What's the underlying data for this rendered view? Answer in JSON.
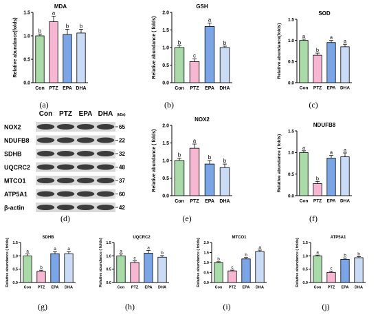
{
  "chart_data": [
    {
      "id": "mda",
      "type": "bar",
      "title": "MDA",
      "ylabel": "Relative abundance(folds)",
      "categories": [
        "Con",
        "PTZ",
        "EPA",
        "DHA"
      ],
      "values": [
        1.0,
        1.3,
        1.03,
        1.06
      ],
      "errors": [
        0.04,
        0.12,
        0.11,
        0.08
      ],
      "sig": [
        "b",
        "a",
        "b",
        "b"
      ],
      "ylim": [
        0,
        1.5
      ],
      "yticks": [
        0.0,
        0.5,
        1.0,
        1.5
      ],
      "caption": "(a)"
    },
    {
      "id": "gsh",
      "type": "bar",
      "title": "GSH",
      "ylabel": "Relative abundance ( folds)",
      "categories": [
        "Con",
        "PTZ",
        "EPA",
        "DHA"
      ],
      "values": [
        1.0,
        0.6,
        1.6,
        1.0
      ],
      "errors": [
        0.05,
        0.08,
        0.1,
        0.04
      ],
      "sig": [
        "b",
        "c",
        "a",
        "b"
      ],
      "ylim": [
        0,
        2.0
      ],
      "yticks": [
        0.0,
        0.5,
        1.0,
        1.5,
        2.0
      ],
      "caption": "(b)"
    },
    {
      "id": "sod",
      "type": "bar",
      "title": "SOD",
      "ylabel": "Relative abundance(folds)",
      "categories": [
        "Con",
        "PTZ",
        "EPA",
        "DHA"
      ],
      "values": [
        1.0,
        0.65,
        0.95,
        0.85
      ],
      "errors": [
        0.03,
        0.05,
        0.05,
        0.06
      ],
      "sig": [
        "a",
        "b",
        "a",
        "a"
      ],
      "ylim": [
        0,
        1.5
      ],
      "yticks": [
        0.0,
        0.5,
        1.0,
        1.5
      ],
      "caption": "(c)"
    },
    {
      "id": "nox2",
      "type": "bar",
      "title": "NOX2",
      "ylabel": "Relative abundance ( folds)",
      "categories": [
        "Con",
        "PTZ",
        "EPA",
        "DHA"
      ],
      "values": [
        1.0,
        1.35,
        0.9,
        0.8
      ],
      "errors": [
        0.07,
        0.12,
        0.1,
        0.1
      ],
      "sig": [
        "b",
        "a",
        "b",
        "b"
      ],
      "ylim": [
        0,
        2.0
      ],
      "yticks": [
        0.0,
        0.5,
        1.0,
        1.5,
        2.0
      ],
      "caption": "(e)"
    },
    {
      "id": "ndufb8",
      "type": "bar",
      "title": "NDUFB8",
      "ylabel": "Relative abundance ( folds)",
      "categories": [
        "Con",
        "PTZ",
        "EPA",
        "DHA"
      ],
      "values": [
        1.0,
        0.28,
        0.87,
        0.9
      ],
      "errors": [
        0.04,
        0.05,
        0.06,
        0.09
      ],
      "sig": [
        "a",
        "b",
        "a",
        "a"
      ],
      "ylim": [
        0,
        1.5
      ],
      "yticks": [
        0.0,
        0.5,
        1.0,
        1.5
      ],
      "caption": "(f)"
    },
    {
      "id": "sdhb",
      "type": "bar",
      "title": "SDHB",
      "ylabel": "Relative abundance ( folds)",
      "categories": [
        "Con",
        "PTZ",
        "EPA",
        "DHA"
      ],
      "values": [
        1.0,
        0.42,
        1.08,
        1.08
      ],
      "errors": [
        0.07,
        0.04,
        0.08,
        0.08
      ],
      "sig": [
        "a",
        "b",
        "a",
        "a"
      ],
      "ylim": [
        0,
        1.5
      ],
      "yticks": [
        0.0,
        0.5,
        1.0,
        1.5
      ],
      "caption": "(g)"
    },
    {
      "id": "uqcrc2",
      "type": "bar",
      "title": "UQCRC2",
      "ylabel": "Relative abundance ( folds)",
      "categories": [
        "Con",
        "PTZ",
        "EPA",
        "DHA"
      ],
      "values": [
        1.0,
        0.75,
        1.1,
        0.95
      ],
      "errors": [
        0.07,
        0.06,
        0.1,
        0.06
      ],
      "sig": [
        "a",
        "c",
        "a",
        "b"
      ],
      "ylim": [
        0,
        1.5
      ],
      "yticks": [
        0.0,
        0.5,
        1.0,
        1.5
      ],
      "caption": "(h)"
    },
    {
      "id": "mtco1",
      "type": "bar",
      "title": "MTCO1",
      "ylabel": "Relative abundance ( folds)",
      "categories": [
        "Con",
        "PTZ",
        "EPA",
        "DHA"
      ],
      "values": [
        1.0,
        0.58,
        1.18,
        1.55
      ],
      "errors": [
        0.04,
        0.04,
        0.07,
        0.07
      ],
      "sig": [
        "b",
        "c",
        "b",
        "a"
      ],
      "ylim": [
        0,
        2.0
      ],
      "yticks": [
        0.0,
        0.5,
        1.0,
        1.5,
        2.0
      ],
      "caption": "(i)"
    },
    {
      "id": "atp5a1",
      "type": "bar",
      "title": "ATP5A1",
      "ylabel": "Relative abundance ( folds)",
      "categories": [
        "Con",
        "PTZ",
        "EPA",
        "DHA"
      ],
      "values": [
        1.0,
        0.38,
        0.87,
        0.93
      ],
      "errors": [
        0.03,
        0.05,
        0.05,
        0.04
      ],
      "sig": [
        "a",
        "c",
        "b",
        "b"
      ],
      "ylim": [
        0,
        1.5
      ],
      "yticks": [
        0.0,
        0.5,
        1.0,
        1.5
      ],
      "caption": "(j)"
    }
  ],
  "colors": {
    "Con": "#a8dba8",
    "PTZ": "#f7b6d2",
    "EPA": "#7aa6e8",
    "DHA": "#c9dbf5"
  },
  "blot": {
    "caption": "(d)",
    "lanes": [
      "Con",
      "PTZ",
      "EPA",
      "DHA"
    ],
    "unit": "(kDa)",
    "rows": [
      {
        "protein": "NOX2",
        "kda": "65"
      },
      {
        "protein": "NDUFB8",
        "kda": "22"
      },
      {
        "protein": "SDHB",
        "kda": "32"
      },
      {
        "protein": "UQCRC2",
        "kda": "48"
      },
      {
        "protein": "MTCO1",
        "kda": "37"
      },
      {
        "protein": "ATP5A1",
        "kda": "60"
      },
      {
        "protein": "β-actin",
        "kda": "42"
      }
    ]
  }
}
